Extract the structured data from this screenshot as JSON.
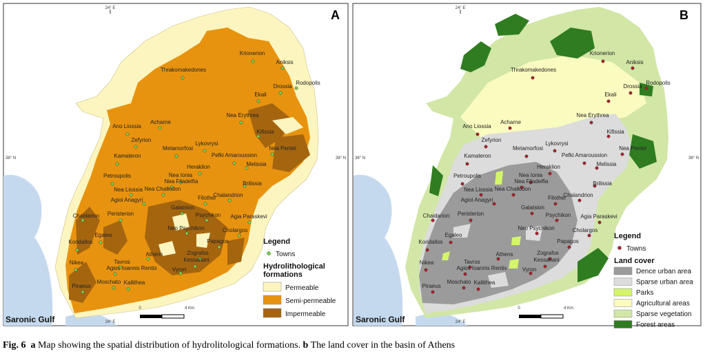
{
  "panel_a": {
    "label": "A",
    "lon_top": "24° E",
    "lon_bottom": "24° E",
    "lat_left": "38° N",
    "lat_right": "38° N",
    "sea": "Saronic Gulf",
    "scale_start": "0",
    "scale_end": "4 Km",
    "towns": [
      "Krionerion",
      "Aniksis",
      "Rodopolis",
      "Drossia",
      "Ekali",
      "Thrakomakedones",
      "Nea Erythrea",
      "Kifissia",
      "Nea Pentel",
      "Ano Liossia",
      "Acharne",
      "Zefyrion",
      "Metamorfosi",
      "Lykovrysi",
      "Pefki Amaroussion",
      "Melissia",
      "Kamateron",
      "Heraklion",
      "Nea Ionia",
      "Nea Filadelfia",
      "Petroupolis",
      "Nea Liossia",
      "Nea Chalkidon",
      "Brilissia",
      "Agioi Anagyri",
      "Filothei",
      "Chalandrion",
      "Chaidarion",
      "Peristerion",
      "Galatsion",
      "Psychikon",
      "Agia Paraskevi",
      "Neo Psychikon",
      "Cholargos",
      "Egaleo",
      "Koridallos",
      "Papagos",
      "Athens",
      "Zografos",
      "Kessariani",
      "Nikea",
      "Tavros",
      "Agios Ioannis Rentis",
      "Vyron",
      "Moschato",
      "Kallithea",
      "Piraeus"
    ],
    "legend": {
      "title": "Legend",
      "towns": "Towns",
      "heading": "Hydrolithological formations",
      "items": [
        {
          "label": "Permeable",
          "color": "#fdf5bf"
        },
        {
          "label": "Semi-permeable",
          "color": "#e8930f"
        },
        {
          "label": "Impermeable",
          "color": "#a5650f"
        }
      ]
    }
  },
  "panel_b": {
    "label": "B",
    "lon_top": "24° E",
    "lon_bottom": "24° E",
    "lat_left": "38° N",
    "lat_right": "38° N",
    "sea": "Saronic Gulf",
    "scale_start": "0",
    "scale_end": "4 Km",
    "towns": [
      "Krionerion",
      "Aniksis",
      "Rodopolis",
      "Drossia",
      "Ekali",
      "Thrakomakedones",
      "Nea Erythrea",
      "Kifissia",
      "Nea Pentel",
      "Ano Liossia",
      "Acharne",
      "Zefyrion",
      "Metamorfosi",
      "Lykovrysi",
      "Pefki Amaroussion",
      "Melissia",
      "Kamateron",
      "Heraklion",
      "Nea Ionia",
      "Nea Filadelfia",
      "Petroupolis",
      "Nea Liossia",
      "Nea Chalkidon",
      "Brilissia",
      "Agioi Anagyri",
      "Filothei",
      "Chalandrion",
      "Chaidarion",
      "Peristerion",
      "Galatsion",
      "Psychikon",
      "Agia Paraskevi",
      "Neo Psychikon",
      "Cholargos",
      "Egaleo",
      "Koridallos",
      "Papagos",
      "Athens",
      "Zografos",
      "Kessariani",
      "Nikea",
      "Tavros",
      "Agios Ioannis Rentis",
      "Vyron",
      "Moschato",
      "Kallithea",
      "Piraeus"
    ],
    "legend": {
      "title": "Legend",
      "towns": "Towns",
      "heading": "Land cover",
      "items": [
        {
          "label": "Dence urban area",
          "color": "#9b9b9b"
        },
        {
          "label": "Sparse urban area",
          "color": "#dcdcdc"
        },
        {
          "label": "Parks",
          "color": "#d4f56b"
        },
        {
          "label": "Agricultural areas",
          "color": "#fafbbf"
        },
        {
          "label": "Sparse vegetation",
          "color": "#d2e6a6"
        },
        {
          "label": "Forest areas",
          "color": "#2f7d20"
        }
      ]
    }
  },
  "caption": {
    "fig": "Fig. 6",
    "a": "a",
    "text_a": "Map showing the spatial distribution of hydrolitological formations.",
    "b": "b",
    "text_b": "The land cover in the basin of Athens"
  }
}
